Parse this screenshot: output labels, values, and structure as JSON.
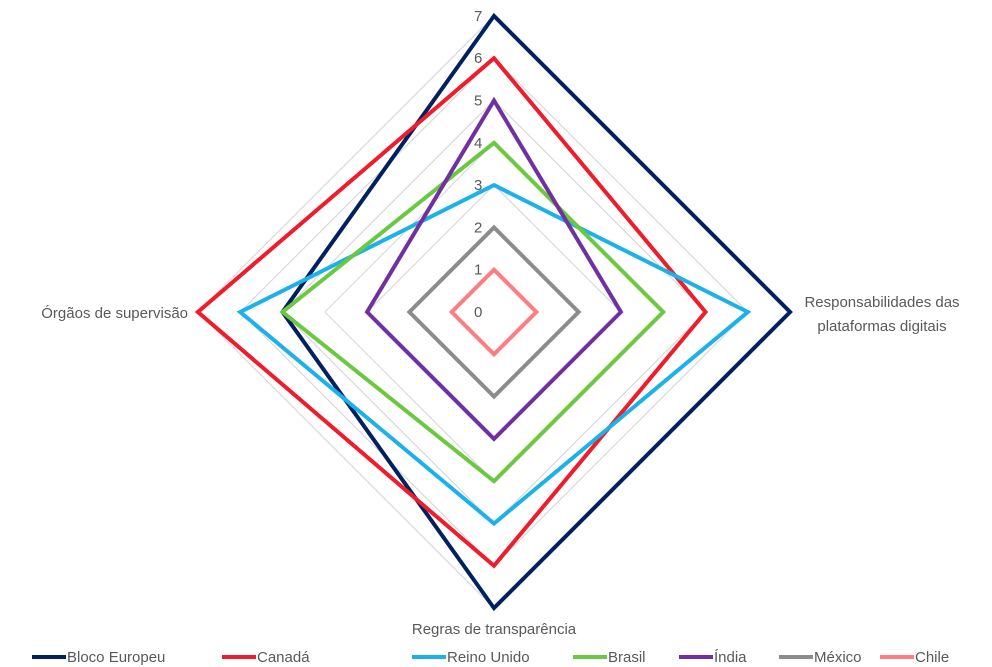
{
  "chart_data": {
    "type": "radar",
    "axes": [
      "Responsabilidades das plataformas digitais",
      "Regras de transparência",
      "Órgãos de supervisão",
      "Top"
    ],
    "axis_labels": {
      "right": [
        "Responsabilidades das",
        "plataformas digitais"
      ],
      "bottom": "Regras de transparência",
      "left": "Órgãos de supervisão"
    },
    "rlim": [
      0,
      7
    ],
    "ticks": [
      "0",
      "1",
      "2",
      "3",
      "4",
      "5",
      "6",
      "7"
    ],
    "grid": true,
    "legend_position": "bottom",
    "series": [
      {
        "name": "Bloco Europeu",
        "color": "#002060",
        "values": {
          "top": 7,
          "right": 7,
          "bottom": 7,
          "left": 5
        }
      },
      {
        "name": "Canadá",
        "color": "#ef1c2b",
        "values": {
          "top": 6,
          "right": 5,
          "bottom": 6,
          "left": 7
        }
      },
      {
        "name": "Reino Unido",
        "color": "#1cb1e9",
        "values": {
          "top": 3,
          "right": 6,
          "bottom": 5,
          "left": 6
        }
      },
      {
        "name": "Brasil",
        "color": "#6ac841",
        "values": {
          "top": 4,
          "right": 4,
          "bottom": 4,
          "left": 5
        }
      },
      {
        "name": "Índia",
        "color": "#7030a0",
        "values": {
          "top": 5,
          "right": 3,
          "bottom": 3,
          "left": 3
        }
      },
      {
        "name": "México",
        "color": "#8c8c8c",
        "values": {
          "top": 2,
          "right": 2,
          "bottom": 2,
          "left": 2
        }
      },
      {
        "name": "Chile",
        "color": "#ff7c80",
        "values": {
          "top": 1,
          "right": 1,
          "bottom": 1,
          "left": 1
        }
      }
    ]
  }
}
